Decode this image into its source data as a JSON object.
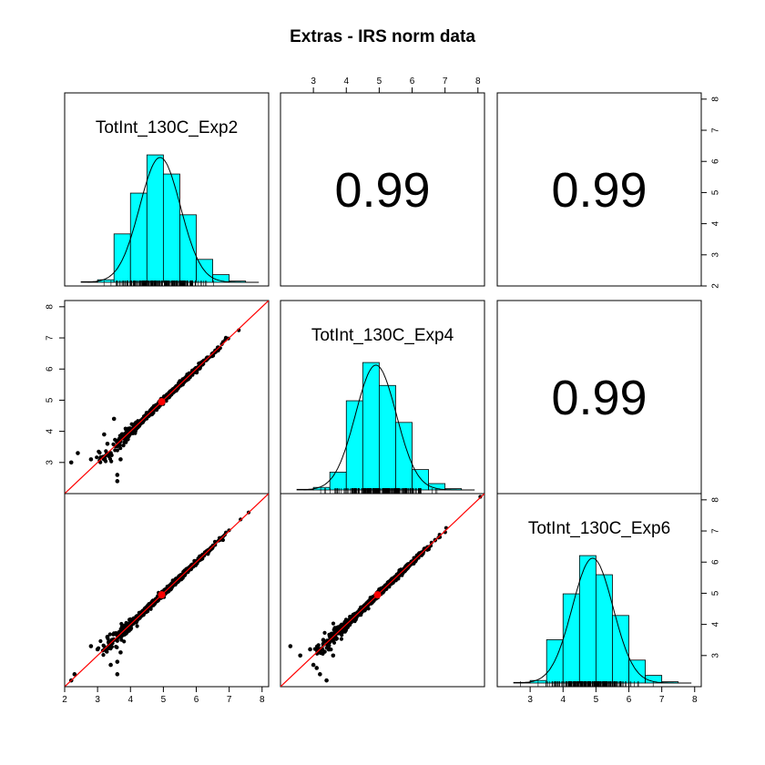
{
  "title": "Extras - IRS norm data",
  "variables": [
    "TotInt_130C_Exp2",
    "TotInt_130C_Exp4",
    "TotInt_130C_Exp6"
  ],
  "correlations": [
    "0.99",
    "0.99",
    "0.99"
  ],
  "axis_ticks": [
    "2",
    "3",
    "4",
    "5",
    "6",
    "7",
    "8"
  ],
  "colors": {
    "histogram_fill": "#00ffff",
    "fit_line": "#ff0000",
    "points": "#000000",
    "mean_marker": "#ff0000"
  },
  "chart_data": {
    "type": "scatter",
    "subtype": "pairs-matrix",
    "title": "Extras - IRS norm data",
    "axis_range": [
      2,
      8.2
    ],
    "diagonal": {
      "type": "histogram",
      "bins": [
        [
          2.5,
          3.0
        ],
        [
          3.0,
          3.5
        ],
        [
          3.5,
          4.0
        ],
        [
          4.0,
          4.5
        ],
        [
          4.5,
          5.0
        ],
        [
          5.0,
          5.5
        ],
        [
          5.5,
          6.0
        ],
        [
          6.0,
          6.5
        ],
        [
          6.5,
          7.0
        ],
        [
          7.0,
          7.5
        ]
      ],
      "relative_heights": {
        "TotInt_130C_Exp2": [
          0.005,
          0.02,
          0.38,
          0.7,
          1.0,
          0.85,
          0.53,
          0.18,
          0.06,
          0.01
        ],
        "TotInt_130C_Exp4": [
          0.005,
          0.02,
          0.14,
          0.7,
          1.0,
          0.82,
          0.53,
          0.16,
          0.05,
          0.01
        ],
        "TotInt_130C_Exp6": [
          0.005,
          0.02,
          0.34,
          0.7,
          1.0,
          0.85,
          0.53,
          0.18,
          0.06,
          0.01
        ]
      },
      "density_overlay": true,
      "rug": true
    },
    "upper_panels": [
      {
        "x": "TotInt_130C_Exp4",
        "y": "TotInt_130C_Exp2",
        "correlation": 0.99
      },
      {
        "x": "TotInt_130C_Exp6",
        "y": "TotInt_130C_Exp2",
        "correlation": 0.99
      },
      {
        "x": "TotInt_130C_Exp6",
        "y": "TotInt_130C_Exp4",
        "correlation": 0.99
      }
    ],
    "lower_panels": [
      {
        "x": "TotInt_130C_Exp2",
        "y": "TotInt_130C_Exp4",
        "fit_line": [
          [
            2,
            2
          ],
          [
            8.2,
            8.2
          ]
        ],
        "mean": [
          4.95,
          4.95
        ],
        "outliers": [
          [
            2.2,
            3.0
          ],
          [
            2.4,
            3.3
          ],
          [
            2.8,
            3.1
          ],
          [
            3.2,
            3.9
          ],
          [
            3.4,
            3.3
          ],
          [
            3.6,
            2.6
          ],
          [
            3.6,
            2.4
          ],
          [
            3.5,
            4.4
          ],
          [
            3.7,
            3.1
          ],
          [
            3.3,
            3.6
          ]
        ]
      },
      {
        "x": "TotInt_130C_Exp2",
        "y": "TotInt_130C_Exp6",
        "fit_line": [
          [
            2,
            2
          ],
          [
            8.2,
            8.2
          ]
        ],
        "mean": [
          4.95,
          4.95
        ],
        "outliers": [
          [
            2.2,
            2.2
          ],
          [
            2.3,
            2.4
          ],
          [
            2.8,
            3.3
          ],
          [
            3.0,
            3.2
          ],
          [
            3.4,
            2.7
          ],
          [
            3.6,
            2.8
          ],
          [
            3.6,
            2.4
          ],
          [
            3.3,
            3.6
          ],
          [
            3.7,
            3.1
          ],
          [
            3.5,
            3.5
          ]
        ]
      },
      {
        "x": "TotInt_130C_Exp4",
        "y": "TotInt_130C_Exp6",
        "fit_line": [
          [
            2,
            2
          ],
          [
            8.2,
            8.2
          ]
        ],
        "mean": [
          4.95,
          4.95
        ],
        "outliers": [
          [
            2.3,
            3.3
          ],
          [
            2.6,
            3.0
          ],
          [
            3.0,
            2.7
          ],
          [
            3.1,
            2.6
          ],
          [
            3.2,
            2.4
          ],
          [
            3.4,
            2.2
          ],
          [
            3.5,
            3.2
          ],
          [
            3.3,
            3.5
          ],
          [
            3.6,
            3.0
          ],
          [
            2.9,
            3.2
          ]
        ]
      }
    ]
  }
}
